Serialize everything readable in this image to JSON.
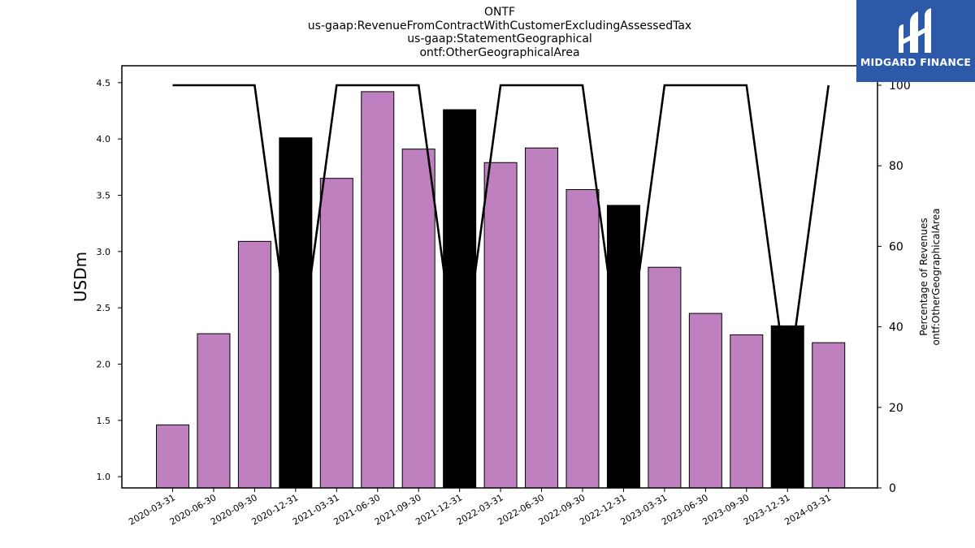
{
  "chart_data": {
    "type": "bar",
    "title_lines": [
      "ONTF",
      "us-gaap:RevenueFromContractWithCustomerExcludingAssessedTax",
      "us-gaap:StatementGeographical",
      "ontf:OtherGeographicalArea"
    ],
    "ylabel": "USDm",
    "y2label_lines": [
      "Percentage of Revenues",
      "ontf:OtherGeographicalArea"
    ],
    "ylim": [
      0.9,
      4.65
    ],
    "y2lim": [
      0,
      100
    ],
    "yticks": [
      "1.0",
      "1.5",
      "2.0",
      "2.5",
      "3.0",
      "3.5",
      "4.0",
      "4.5"
    ],
    "y2ticks": [
      "0",
      "20",
      "40",
      "60",
      "80",
      "100"
    ],
    "categories": [
      "2020-03-31",
      "2020-06-30",
      "2020-09-30",
      "2020-12-31",
      "2021-03-31",
      "2021-06-30",
      "2021-09-30",
      "2021-12-31",
      "2022-03-31",
      "2022-06-30",
      "2022-09-30",
      "2022-12-31",
      "2023-03-31",
      "2023-06-30",
      "2023-09-30",
      "2023-12-31",
      "2024-03-31"
    ],
    "series": [
      {
        "values": [
          1.46,
          2.27,
          3.09,
          4.01,
          3.65,
          4.42,
          3.91,
          4.26,
          3.79,
          3.92,
          3.55,
          3.41,
          2.86,
          2.45,
          2.26,
          2.34,
          2.19
        ],
        "colors": [
          "#bf80bf",
          "#bf80bf",
          "#bf80bf",
          "#000000",
          "#bf80bf",
          "#bf80bf",
          "#bf80bf",
          "#000000",
          "#bf80bf",
          "#bf80bf",
          "#bf80bf",
          "#000000",
          "#bf80bf",
          "#bf80bf",
          "#bf80bf",
          "#000000",
          "#bf80bf"
        ]
      },
      {
        "type": "line",
        "axis": "right",
        "values": [
          100,
          100,
          100,
          25,
          100,
          100,
          100,
          25,
          100,
          100,
          100,
          25,
          100,
          100,
          100,
          25,
          100
        ],
        "color": "#000000"
      }
    ],
    "grid": false
  },
  "logo": {
    "text": "MIDGARD FINANCE",
    "background": "#2c5aa8"
  }
}
